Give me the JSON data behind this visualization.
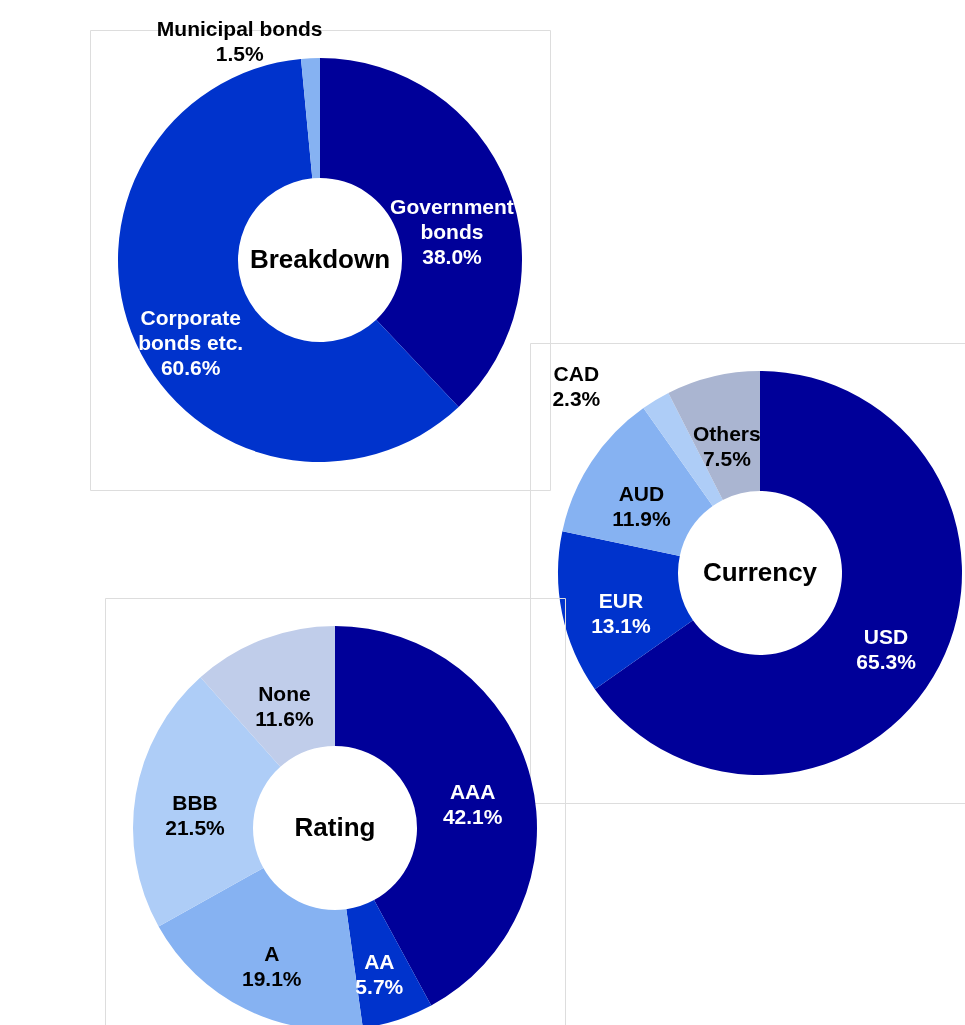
{
  "chart_data": [
    {
      "type": "donut",
      "title": "Breakdown",
      "categories": [
        "Government bonds",
        "Corporate bonds etc.",
        "Municipal bonds"
      ],
      "values": [
        38.0,
        60.6,
        1.5
      ],
      "colors": [
        "#000099",
        "#0033cc",
        "#86b2f2"
      ],
      "value_labels": [
        "38.0%",
        "60.6%",
        "1.5%"
      ]
    },
    {
      "type": "donut",
      "title": "Currency",
      "categories": [
        "USD",
        "EUR",
        "AUD",
        "CAD",
        "Others"
      ],
      "values": [
        65.3,
        13.1,
        11.9,
        2.3,
        7.5
      ],
      "colors": [
        "#000099",
        "#0033cc",
        "#86b2f2",
        "#aecdf7",
        "#aab5d1"
      ],
      "value_labels": [
        "65.3%",
        "13.1%",
        "11.9%",
        "2.3%",
        "7.5%"
      ]
    },
    {
      "type": "donut",
      "title": "Rating",
      "categories": [
        "AAA",
        "AA",
        "A",
        "BBB",
        "None"
      ],
      "values": [
        42.1,
        5.7,
        19.1,
        21.5,
        11.6
      ],
      "colors": [
        "#000099",
        "#0033cc",
        "#86b2f2",
        "#aecdf7",
        "#c0cdea"
      ],
      "value_labels": [
        "42.1%",
        "5.7%",
        "19.1%",
        "21.5%",
        "11.6%"
      ]
    }
  ]
}
